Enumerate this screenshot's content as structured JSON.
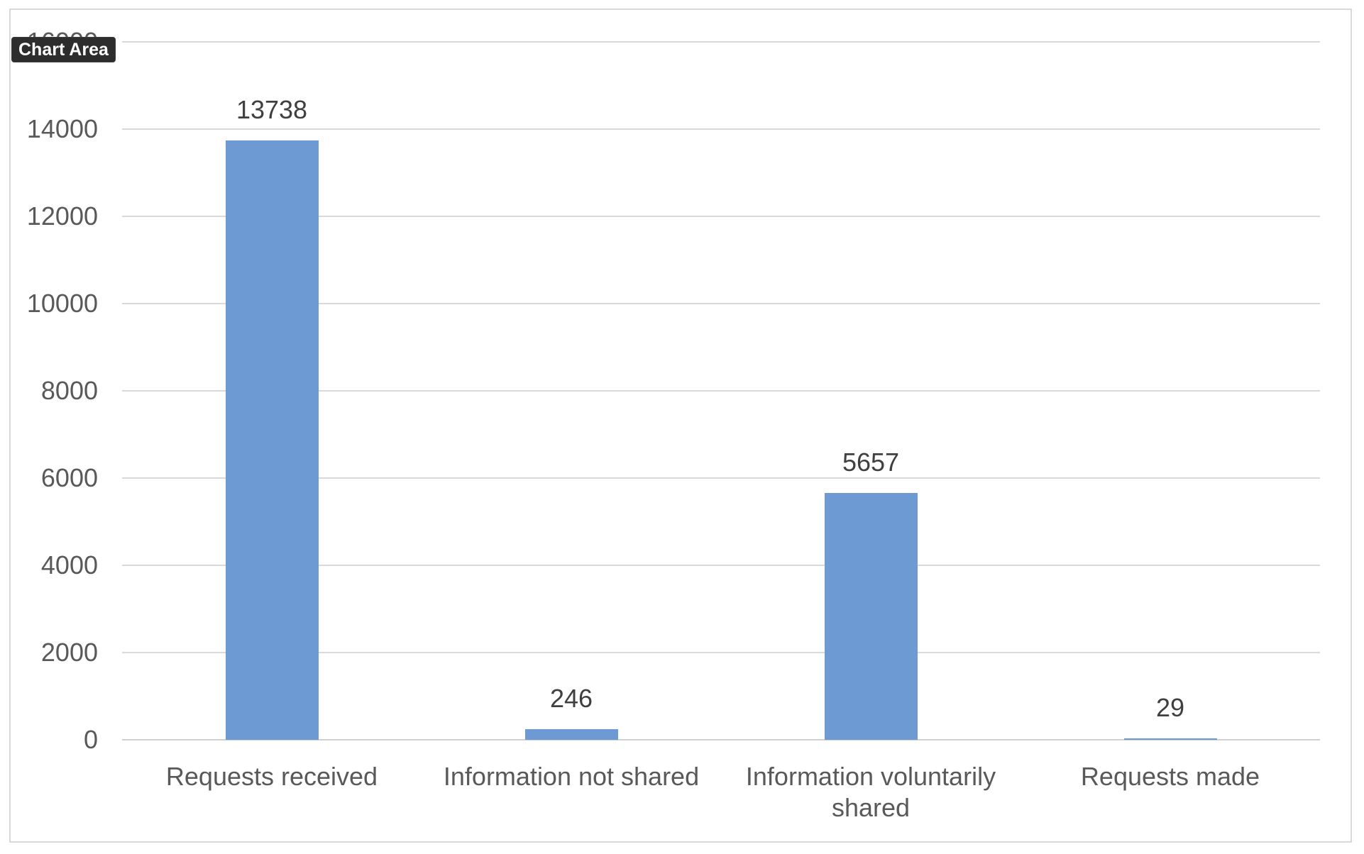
{
  "tooltip": {
    "label": "Chart Area"
  },
  "chart_data": {
    "type": "bar",
    "categories": [
      "Requests received",
      "Information not shared",
      "Information voluntarily shared",
      "Requests made"
    ],
    "values": [
      13738,
      246,
      5657,
      29
    ],
    "data_labels": [
      "13738",
      "246",
      "5657",
      "29"
    ],
    "title": "",
    "xlabel": "",
    "ylabel": "",
    "ylim": [
      0,
      16000
    ],
    "ytick_step": 2000,
    "ytick_labels": [
      "0",
      "2000",
      "4000",
      "6000",
      "8000",
      "10000",
      "12000",
      "14000",
      "16000"
    ],
    "grid": true,
    "legend": "none"
  },
  "colors": {
    "bar": "#6e9ad3",
    "gridline": "#d9d9d9",
    "zero_line": "#d0d0d0",
    "axis_label_text": "#595959",
    "data_label_text": "#3f3f3f",
    "chart_border": "#d9d9d9",
    "chart_background": "#ffffff",
    "tooltip_background": "#2d2d2d",
    "tooltip_text": "#ffffff"
  }
}
